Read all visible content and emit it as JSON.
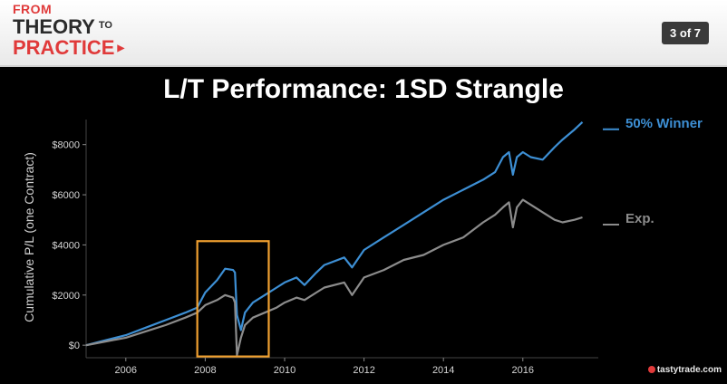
{
  "header": {
    "brand_line1": "FROM",
    "brand_line2": "THEORY",
    "brand_to": "TO",
    "brand_line3": "PRACTICE",
    "slide_counter": "3 of 7"
  },
  "logo_text": "tastytrade",
  "logo_suffix": ".com",
  "colors": {
    "series_winner": "#3d8fd4",
    "series_exp": "#8c8c8c",
    "highlight_box": "#f0a030"
  },
  "chart_data": {
    "type": "line",
    "title": "L/T Performance: 1SD Strangle",
    "ylabel": "Cumulative P/L (one Contract)",
    "xlabel": "",
    "xlim": [
      2005.0,
      2017.9
    ],
    "ylim": [
      -500,
      9000
    ],
    "x_ticks": [
      {
        "value": 2006,
        "label": "2006"
      },
      {
        "value": 2008,
        "label": "2008"
      },
      {
        "value": 2010,
        "label": "2010"
      },
      {
        "value": 2012,
        "label": "2012"
      },
      {
        "value": 2014,
        "label": "2014"
      },
      {
        "value": 2016,
        "label": "2016"
      }
    ],
    "y_ticks": [
      {
        "value": 0,
        "label": "$0"
      },
      {
        "value": 2000,
        "label": "$2000"
      },
      {
        "value": 4000,
        "label": "$4000"
      },
      {
        "value": 6000,
        "label": "$6000"
      },
      {
        "value": 8000,
        "label": "$8000"
      }
    ],
    "series": [
      {
        "name": "50% Winner",
        "points": [
          [
            2005.0,
            0
          ],
          [
            2005.5,
            200
          ],
          [
            2006.0,
            400
          ],
          [
            2006.5,
            700
          ],
          [
            2007.0,
            1000
          ],
          [
            2007.5,
            1300
          ],
          [
            2007.8,
            1500
          ],
          [
            2008.0,
            2100
          ],
          [
            2008.3,
            2600
          ],
          [
            2008.5,
            3050
          ],
          [
            2008.7,
            3000
          ],
          [
            2008.75,
            2900
          ],
          [
            2008.8,
            1200
          ],
          [
            2008.9,
            600
          ],
          [
            2009.0,
            1300
          ],
          [
            2009.2,
            1700
          ],
          [
            2009.5,
            2000
          ],
          [
            2009.8,
            2300
          ],
          [
            2010.0,
            2500
          ],
          [
            2010.3,
            2700
          ],
          [
            2010.5,
            2400
          ],
          [
            2010.8,
            2900
          ],
          [
            2011.0,
            3200
          ],
          [
            2011.5,
            3500
          ],
          [
            2011.7,
            3100
          ],
          [
            2012.0,
            3800
          ],
          [
            2012.5,
            4300
          ],
          [
            2013.0,
            4800
          ],
          [
            2013.5,
            5300
          ],
          [
            2014.0,
            5800
          ],
          [
            2014.5,
            6200
          ],
          [
            2015.0,
            6600
          ],
          [
            2015.3,
            6900
          ],
          [
            2015.5,
            7500
          ],
          [
            2015.65,
            7700
          ],
          [
            2015.75,
            6800
          ],
          [
            2015.85,
            7500
          ],
          [
            2016.0,
            7700
          ],
          [
            2016.2,
            7500
          ],
          [
            2016.5,
            7400
          ],
          [
            2016.8,
            7900
          ],
          [
            2017.0,
            8200
          ],
          [
            2017.3,
            8600
          ],
          [
            2017.5,
            8900
          ]
        ]
      },
      {
        "name": "Exp.",
        "points": [
          [
            2005.0,
            0
          ],
          [
            2005.5,
            150
          ],
          [
            2006.0,
            300
          ],
          [
            2006.5,
            550
          ],
          [
            2007.0,
            800
          ],
          [
            2007.5,
            1100
          ],
          [
            2007.8,
            1300
          ],
          [
            2008.0,
            1600
          ],
          [
            2008.3,
            1800
          ],
          [
            2008.5,
            2000
          ],
          [
            2008.7,
            1900
          ],
          [
            2008.75,
            1700
          ],
          [
            2008.8,
            -400
          ],
          [
            2008.9,
            300
          ],
          [
            2009.0,
            800
          ],
          [
            2009.2,
            1100
          ],
          [
            2009.5,
            1300
          ],
          [
            2009.8,
            1500
          ],
          [
            2010.0,
            1700
          ],
          [
            2010.3,
            1900
          ],
          [
            2010.5,
            1800
          ],
          [
            2010.8,
            2100
          ],
          [
            2011.0,
            2300
          ],
          [
            2011.5,
            2500
          ],
          [
            2011.7,
            2000
          ],
          [
            2012.0,
            2700
          ],
          [
            2012.5,
            3000
          ],
          [
            2013.0,
            3400
          ],
          [
            2013.5,
            3600
          ],
          [
            2014.0,
            4000
          ],
          [
            2014.5,
            4300
          ],
          [
            2015.0,
            4900
          ],
          [
            2015.3,
            5200
          ],
          [
            2015.5,
            5500
          ],
          [
            2015.65,
            5700
          ],
          [
            2015.75,
            4700
          ],
          [
            2015.85,
            5500
          ],
          [
            2016.0,
            5800
          ],
          [
            2016.2,
            5600
          ],
          [
            2016.5,
            5300
          ],
          [
            2016.8,
            5000
          ],
          [
            2017.0,
            4900
          ],
          [
            2017.3,
            5000
          ],
          [
            2017.5,
            5100
          ]
        ]
      }
    ],
    "highlight_range": {
      "x": [
        2007.8,
        2009.6
      ],
      "y": [
        -450,
        4150
      ]
    }
  }
}
